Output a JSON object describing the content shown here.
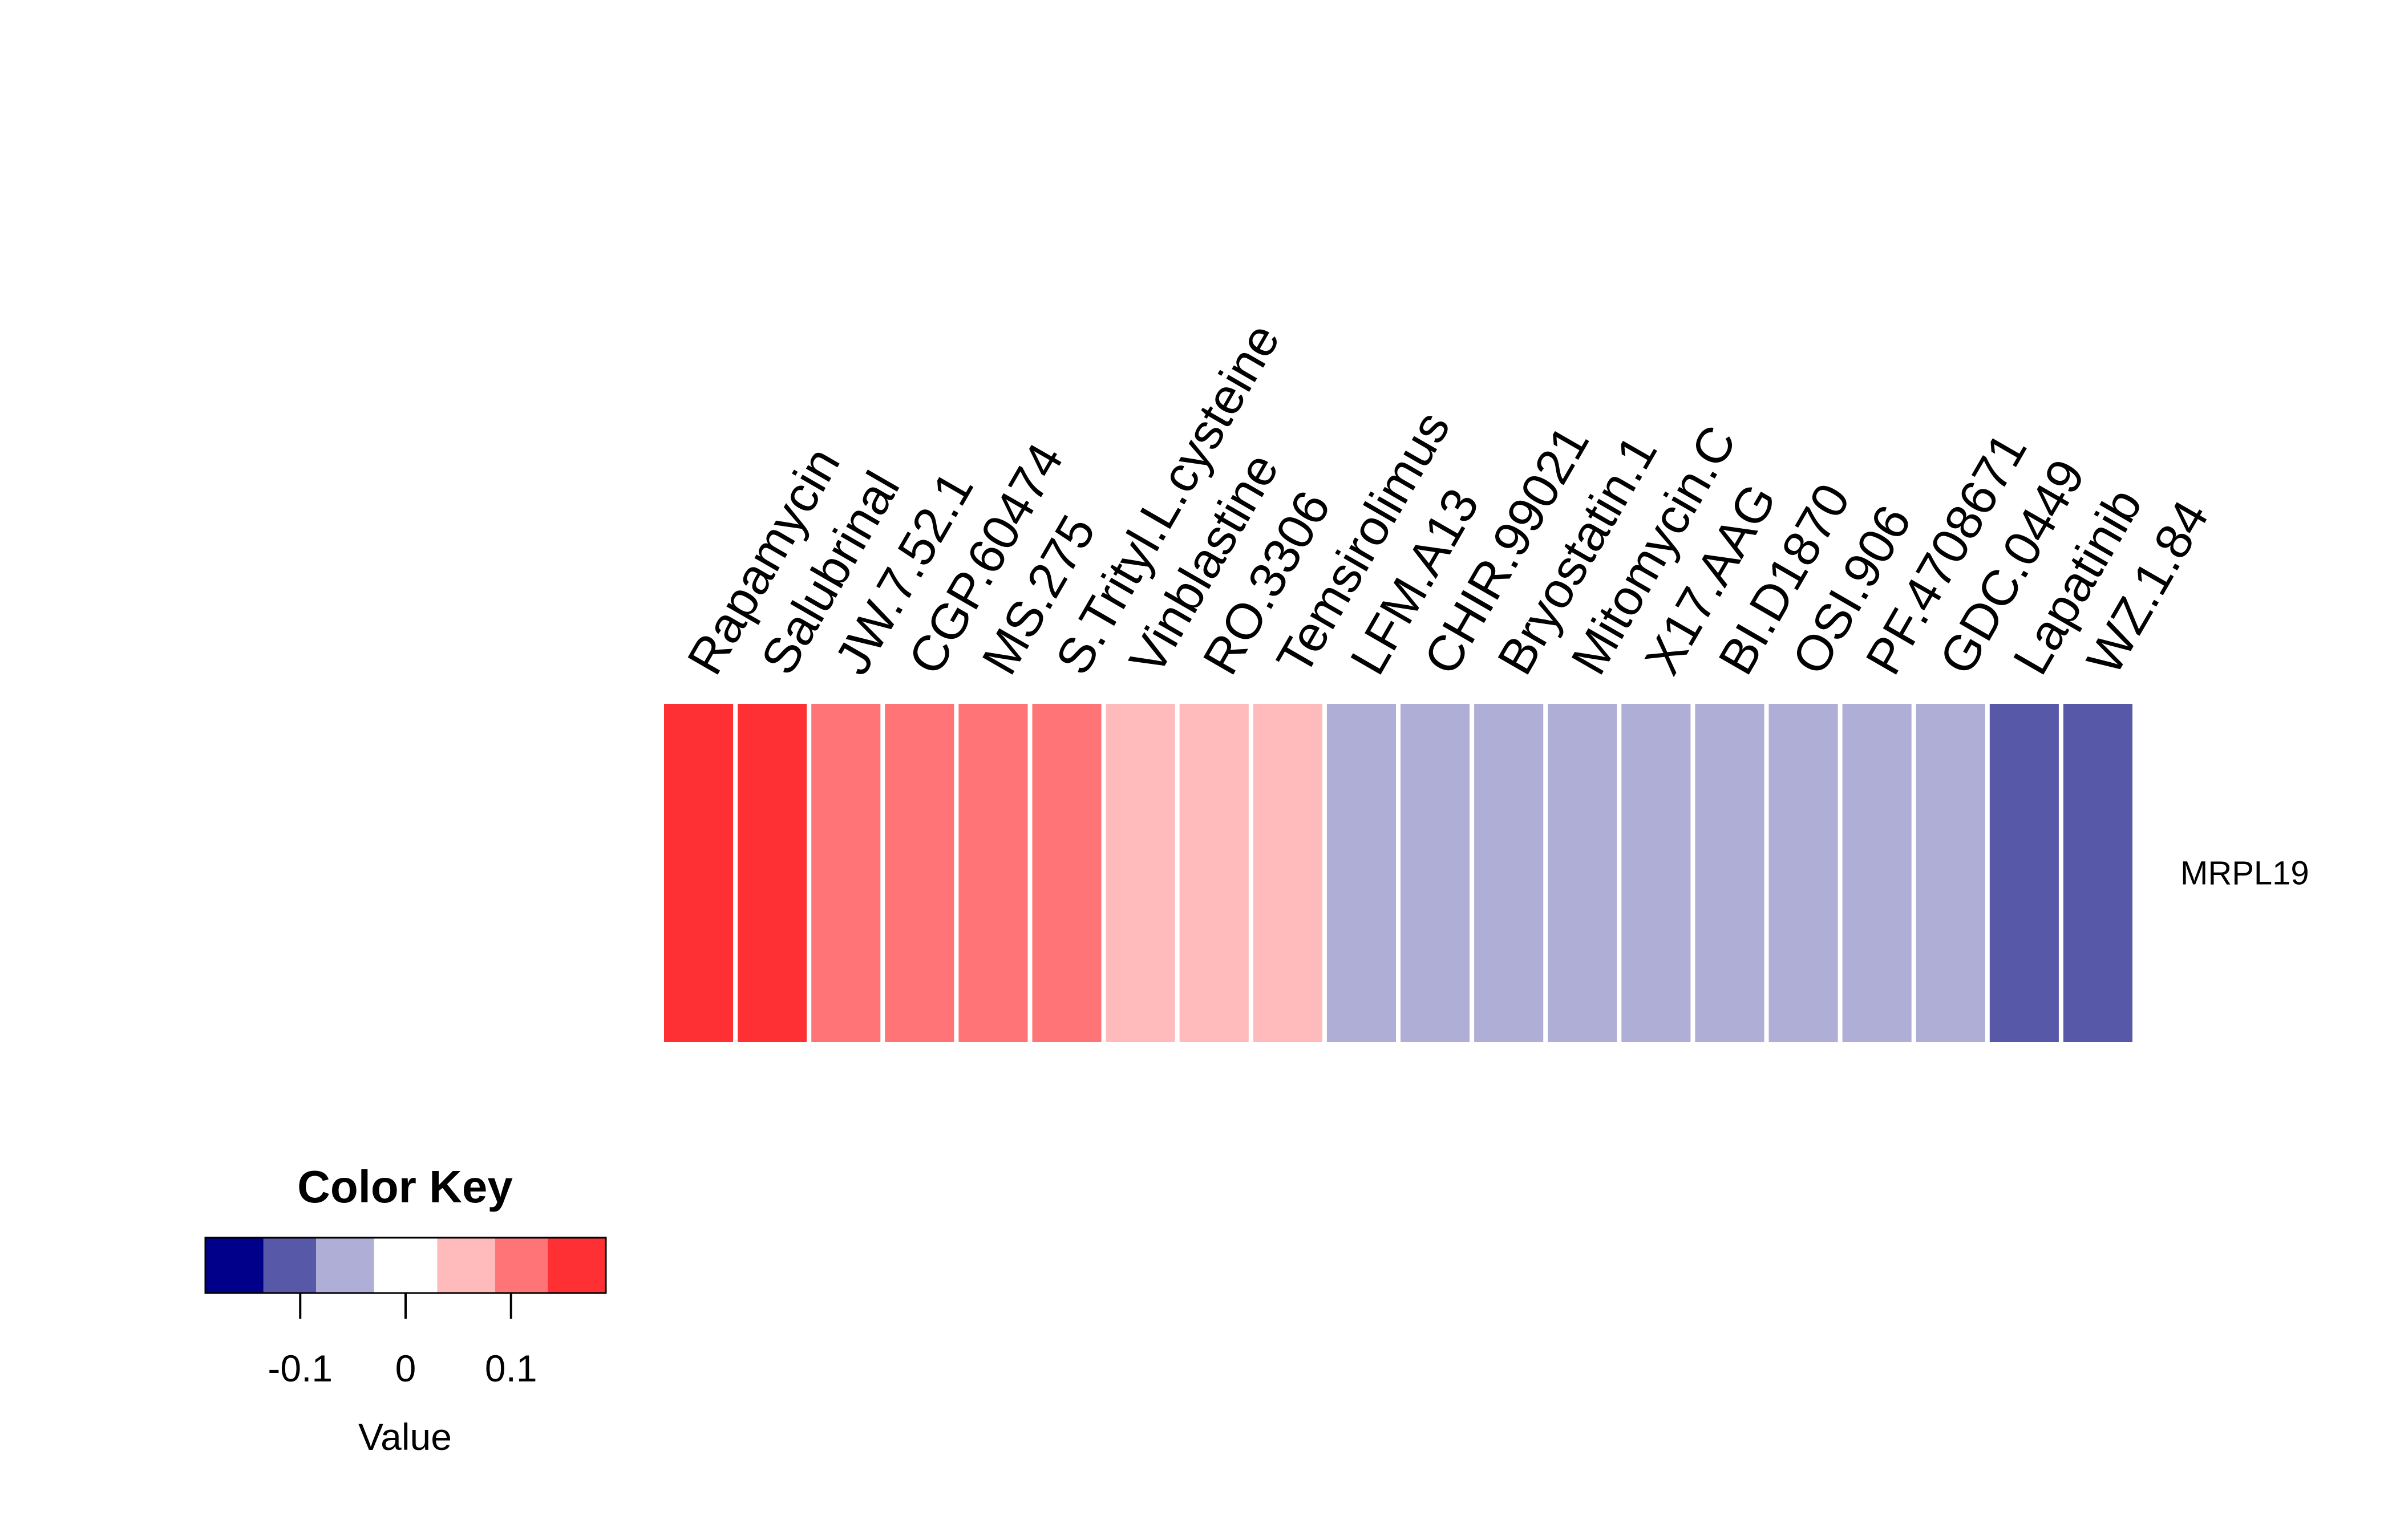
{
  "chart_data": {
    "type": "heatmap",
    "rows": [
      "MRPL19"
    ],
    "columns": [
      "Rapamycin",
      "Salubrinal",
      "JW.7.52.1",
      "CGP.60474",
      "MS.275",
      "S.Trityl.L.cysteine",
      "Vinblastine",
      "RO.3306",
      "Temsirolimus",
      "LFM.A13",
      "CHIR.99021",
      "Bryostatin.1",
      "Mitomycin.C",
      "X17.AAG",
      "BI.D1870",
      "OSI.906",
      "PF.4708671",
      "GDC.0449",
      "Lapatinib",
      "WZ.1.84"
    ],
    "values": [
      [
        0.165,
        0.165,
        0.115,
        0.115,
        0.115,
        0.115,
        0.06,
        0.06,
        0.06,
        -0.06,
        -0.06,
        -0.06,
        -0.06,
        -0.06,
        -0.06,
        -0.06,
        -0.06,
        -0.06,
        -0.115,
        -0.115
      ]
    ],
    "color_key": {
      "title": "Color Key",
      "xlabel": "Value",
      "breaks": [
        -0.19,
        -0.135,
        -0.085,
        -0.03,
        0.03,
        0.085,
        0.135,
        0.19
      ],
      "colors": [
        "#00008b",
        "#5858a8",
        "#aeaed6",
        "#ffffff",
        "#ffbabc",
        "#ff7476",
        "#ff3033"
      ],
      "ticks": [
        -0.1,
        0,
        0.1
      ],
      "tick_labels": [
        "-0.1",
        "0",
        "0.1"
      ]
    },
    "grid": false
  }
}
